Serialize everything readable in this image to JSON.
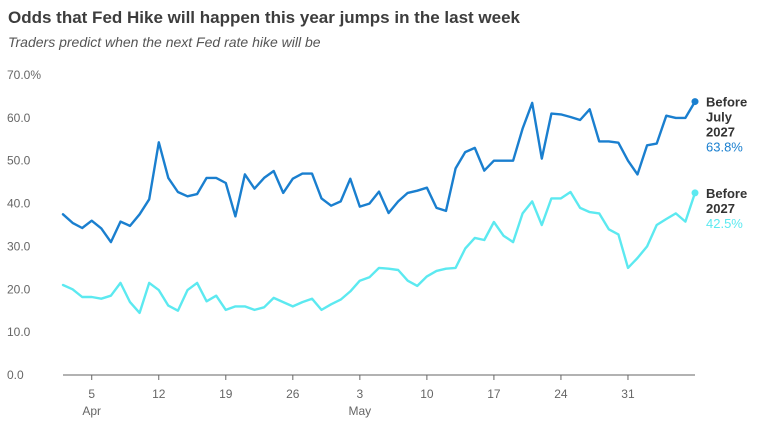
{
  "chart_data": {
    "type": "line",
    "title": "Odds that Fed Hike will happen this year jumps in the last week",
    "subtitle": "Traders predict when the next Fed rate hike will be",
    "xlabel": "",
    "ylabel": "",
    "ylim": [
      0,
      70
    ],
    "y_ticks": [
      "0.0",
      "10.0",
      "20.0",
      "30.0",
      "40.0",
      "50.0",
      "60.0",
      "70.0%"
    ],
    "x_ticks": [
      {
        "label": "5",
        "month": "Apr",
        "index": 3
      },
      {
        "label": "12",
        "month": "",
        "index": 10
      },
      {
        "label": "19",
        "month": "",
        "index": 17
      },
      {
        "label": "26",
        "month": "",
        "index": 24
      },
      {
        "label": "3",
        "month": "May",
        "index": 31
      },
      {
        "label": "10",
        "month": "",
        "index": 38
      },
      {
        "label": "17",
        "month": "",
        "index": 45
      },
      {
        "label": "24",
        "month": "",
        "index": 52
      },
      {
        "label": "31",
        "month": "",
        "index": 59
      }
    ],
    "grid": false,
    "legend": "end-of-line labels",
    "series": [
      {
        "name": "Before July 2027",
        "name_lines": [
          "Before",
          "July",
          "2027"
        ],
        "end_label": "63.8%",
        "color": "#1a7fcf",
        "values": [
          37.5,
          35.5,
          34.3,
          36.0,
          34.2,
          31.0,
          35.8,
          34.8,
          37.5,
          41.0,
          54.3,
          46.0,
          42.7,
          41.7,
          42.2,
          46.0,
          46.0,
          44.8,
          37.0,
          46.8,
          43.5,
          46.0,
          47.6,
          42.5,
          45.8,
          47.0,
          47.0,
          41.2,
          39.5,
          40.5,
          45.8,
          39.3,
          40.0,
          42.8,
          37.8,
          40.5,
          42.5,
          43.0,
          43.7,
          39.0,
          38.3,
          48.2,
          52.0,
          53.0,
          47.7,
          50.0,
          50.0,
          50.0,
          57.5,
          63.5,
          50.5,
          61.0,
          60.8,
          60.2,
          59.5,
          62.0,
          54.5,
          54.5,
          54.2,
          50.0,
          46.8,
          53.6,
          54.0,
          60.5,
          60.0,
          60.0,
          63.8
        ]
      },
      {
        "name": "Before 2027",
        "name_lines": [
          "Before",
          "2027"
        ],
        "end_label": "42.5%",
        "color": "#5ce9f0",
        "values": [
          21.0,
          20.0,
          18.2,
          18.2,
          17.8,
          18.5,
          21.5,
          17.0,
          14.5,
          21.5,
          19.8,
          16.2,
          15.0,
          19.8,
          21.5,
          17.2,
          18.5,
          15.2,
          16.0,
          16.0,
          15.2,
          15.8,
          18.0,
          17.0,
          16.0,
          17.0,
          17.8,
          15.2,
          16.5,
          17.6,
          19.5,
          22.0,
          22.8,
          25.0,
          24.8,
          24.5,
          22.0,
          20.8,
          23.0,
          24.3,
          24.8,
          25.0,
          29.5,
          32.0,
          31.5,
          35.7,
          32.5,
          31.0,
          37.7,
          40.5,
          35.0,
          41.2,
          41.2,
          42.7,
          39.0,
          38.0,
          37.7,
          34.0,
          32.8,
          25.0,
          27.3,
          30.0,
          35.0,
          36.4,
          37.7,
          35.8,
          42.5
        ]
      }
    ]
  }
}
